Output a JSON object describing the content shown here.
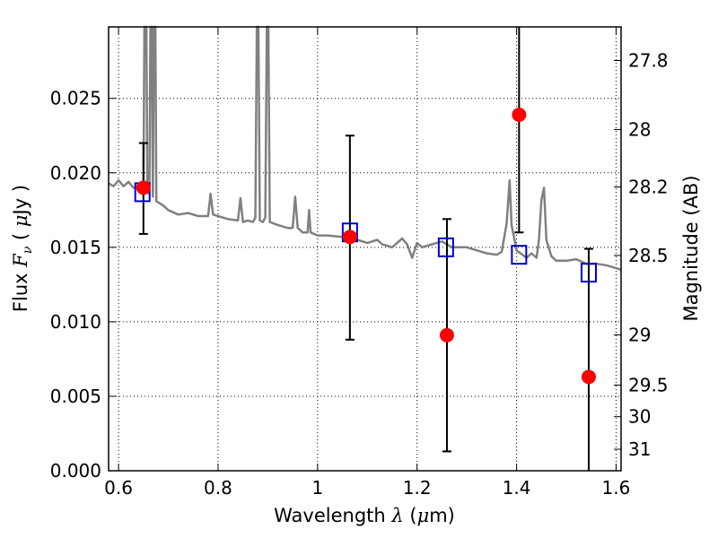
{
  "chart_data": {
    "type": "scatter",
    "xlabel": "Wavelength  λ (μm)",
    "ylabel": "Flux  Fν  ( μJy )",
    "y2label": "Magnitude (AB)",
    "xlim": [
      0.58,
      1.61
    ],
    "ylim": [
      0.0,
      0.0298
    ],
    "grid": true,
    "x_ticks": [
      0.6,
      0.8,
      1.0,
      1.2,
      1.4,
      1.6
    ],
    "x_tick_labels": [
      "0.6",
      "0.8",
      "1",
      "1.2",
      "1.4",
      "1.6"
    ],
    "y_ticks": [
      0.0,
      0.005,
      0.01,
      0.015,
      0.02,
      0.025
    ],
    "y_tick_labels": [
      "0.000",
      "0.005",
      "0.010",
      "0.015",
      "0.020",
      "0.025"
    ],
    "mag_ticks": [
      27.8,
      28,
      28.2,
      28.5,
      29,
      29.5,
      30,
      31
    ],
    "mag_tick_labels": [
      "27.8",
      "28",
      "28.2",
      "28.5",
      "29",
      "29.5",
      "30",
      "31"
    ],
    "series": [
      {
        "kind": "spectrum",
        "color": "#808080",
        "points": [
          [
            0.58,
            0.0193
          ],
          [
            0.59,
            0.0191
          ],
          [
            0.6,
            0.0195
          ],
          [
            0.61,
            0.0191
          ],
          [
            0.62,
            0.0194
          ],
          [
            0.63,
            0.019
          ],
          [
            0.64,
            0.0191
          ],
          [
            0.645,
            0.0188
          ],
          [
            0.65,
            0.0185
          ],
          [
            0.652,
            0.03
          ],
          [
            0.654,
            0.03
          ],
          [
            0.656,
            0.03
          ],
          [
            0.658,
            0.0187
          ],
          [
            0.662,
            0.0186
          ],
          [
            0.664,
            0.03
          ],
          [
            0.667,
            0.03
          ],
          [
            0.669,
            0.0184
          ],
          [
            0.671,
            0.03
          ],
          [
            0.674,
            0.03
          ],
          [
            0.676,
            0.0181
          ],
          [
            0.69,
            0.0178
          ],
          [
            0.7,
            0.0175
          ],
          [
            0.72,
            0.0172
          ],
          [
            0.74,
            0.0173
          ],
          [
            0.76,
            0.0171
          ],
          [
            0.78,
            0.0171
          ],
          [
            0.785,
            0.0186
          ],
          [
            0.79,
            0.0172
          ],
          [
            0.82,
            0.0169
          ],
          [
            0.84,
            0.0168
          ],
          [
            0.845,
            0.0183
          ],
          [
            0.85,
            0.0167
          ],
          [
            0.86,
            0.0168
          ],
          [
            0.87,
            0.0167
          ],
          [
            0.875,
            0.017
          ],
          [
            0.878,
            0.03
          ],
          [
            0.881,
            0.03
          ],
          [
            0.884,
            0.0168
          ],
          [
            0.89,
            0.0167
          ],
          [
            0.895,
            0.017
          ],
          [
            0.898,
            0.03
          ],
          [
            0.901,
            0.03
          ],
          [
            0.904,
            0.0167
          ],
          [
            0.92,
            0.0165
          ],
          [
            0.94,
            0.0163
          ],
          [
            0.95,
            0.0163
          ],
          [
            0.955,
            0.0184
          ],
          [
            0.96,
            0.0163
          ],
          [
            0.97,
            0.016
          ],
          [
            0.98,
            0.016
          ],
          [
            0.983,
            0.0175
          ],
          [
            0.986,
            0.016
          ],
          [
            1.0,
            0.0158
          ],
          [
            1.02,
            0.0158
          ],
          [
            1.05,
            0.0157
          ],
          [
            1.08,
            0.0155
          ],
          [
            1.1,
            0.0153
          ],
          [
            1.12,
            0.0155
          ],
          [
            1.13,
            0.0152
          ],
          [
            1.15,
            0.015
          ],
          [
            1.17,
            0.0156
          ],
          [
            1.18,
            0.0152
          ],
          [
            1.19,
            0.0143
          ],
          [
            1.2,
            0.0153
          ],
          [
            1.21,
            0.015
          ],
          [
            1.23,
            0.0152
          ],
          [
            1.25,
            0.0154
          ],
          [
            1.27,
            0.015
          ],
          [
            1.3,
            0.015
          ],
          [
            1.32,
            0.0148
          ],
          [
            1.34,
            0.0146
          ],
          [
            1.36,
            0.0145
          ],
          [
            1.37,
            0.0147
          ],
          [
            1.38,
            0.0166
          ],
          [
            1.386,
            0.0195
          ],
          [
            1.39,
            0.0165
          ],
          [
            1.4,
            0.0148
          ],
          [
            1.42,
            0.0143
          ],
          [
            1.43,
            0.0146
          ],
          [
            1.44,
            0.0143
          ],
          [
            1.445,
            0.0155
          ],
          [
            1.45,
            0.0182
          ],
          [
            1.455,
            0.019
          ],
          [
            1.46,
            0.0155
          ],
          [
            1.47,
            0.0144
          ],
          [
            1.48,
            0.0141
          ],
          [
            1.5,
            0.0141
          ],
          [
            1.52,
            0.0142
          ],
          [
            1.54,
            0.0139
          ],
          [
            1.56,
            0.0139
          ],
          [
            1.58,
            0.0138
          ],
          [
            1.6,
            0.0136
          ],
          [
            1.61,
            0.0135
          ]
        ]
      },
      {
        "kind": "observed",
        "marker": "circle",
        "color": "#ff0000",
        "points": [
          {
            "x": 0.65,
            "y": 0.019,
            "yerr_low": 0.0159,
            "yerr_high": 0.022
          },
          {
            "x": 1.065,
            "y": 0.0157,
            "yerr_low": 0.0088,
            "yerr_high": 0.0225
          },
          {
            "x": 1.26,
            "y": 0.0091,
            "yerr_low": 0.0013,
            "yerr_high": 0.0169
          },
          {
            "x": 1.405,
            "y": 0.0239,
            "yerr_low": 0.016,
            "yerr_high": 0.03
          },
          {
            "x": 1.545,
            "y": 0.0063,
            "yerr_low": 0.0,
            "yerr_high": 0.0149
          }
        ]
      },
      {
        "kind": "model",
        "marker": "square",
        "color": "#0000cc",
        "points": [
          {
            "x": 0.648,
            "y": 0.0187
          },
          {
            "x": 1.065,
            "y": 0.016
          },
          {
            "x": 1.258,
            "y": 0.015
          },
          {
            "x": 1.405,
            "y": 0.0145
          },
          {
            "x": 1.545,
            "y": 0.0133
          }
        ]
      }
    ]
  }
}
